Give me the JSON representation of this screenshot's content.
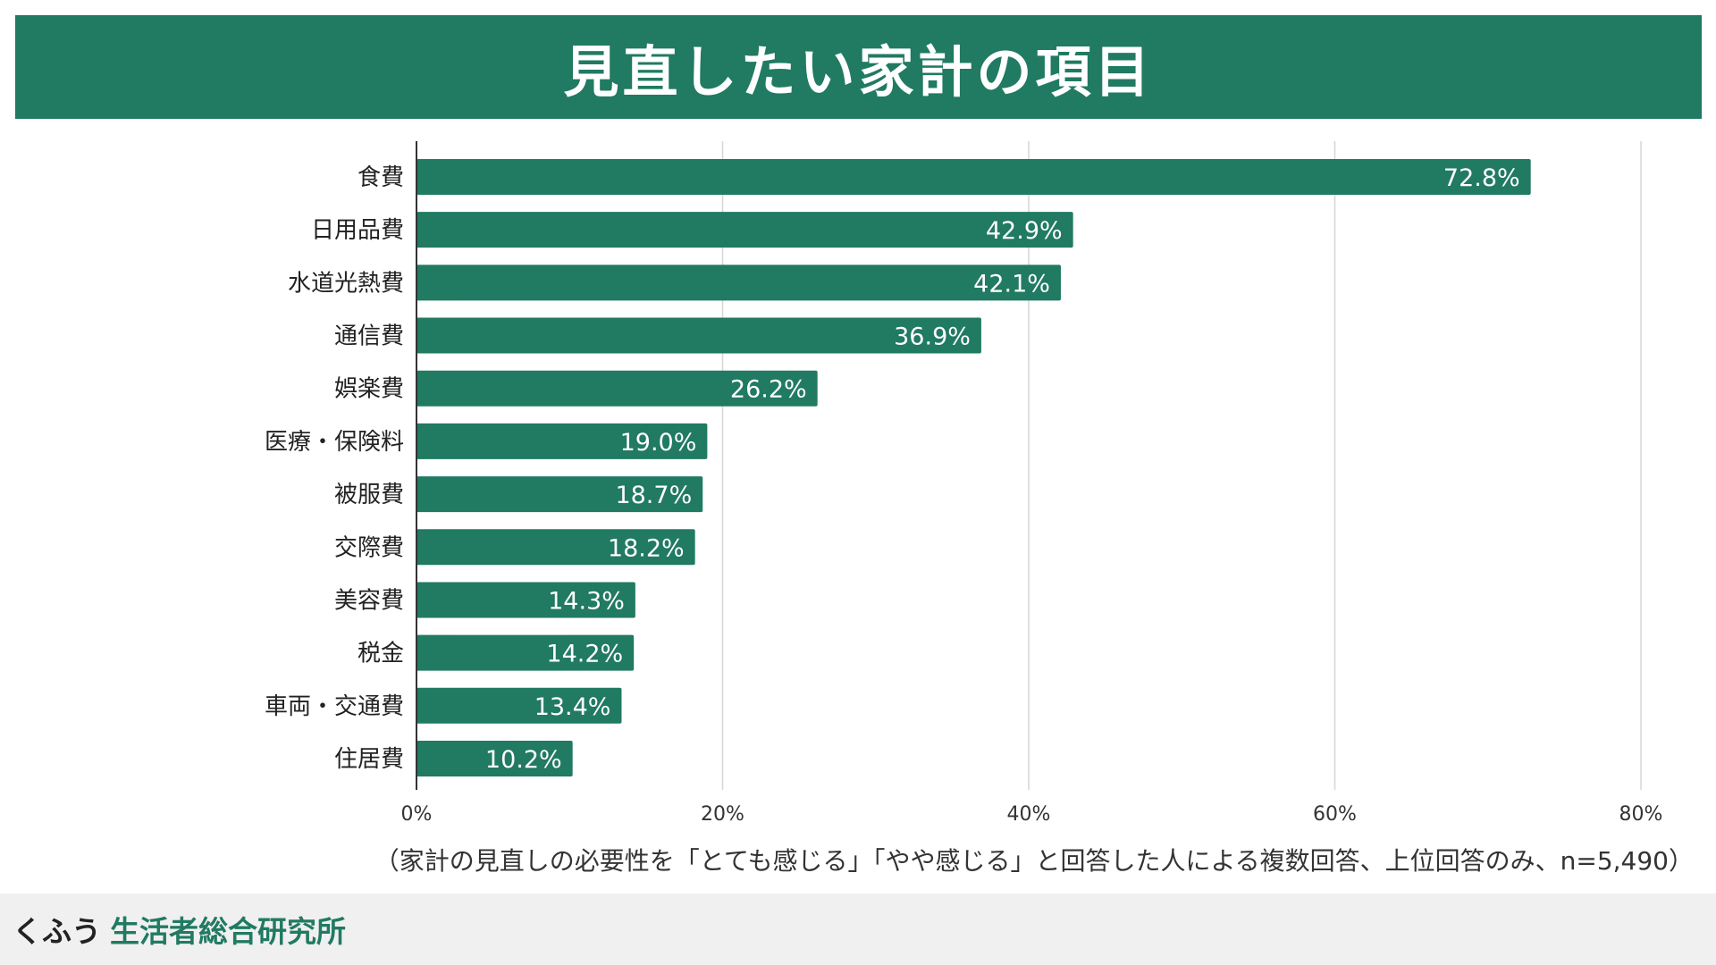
{
  "colors": {
    "accent": "#217a62",
    "bar": "#217a62",
    "grid": "#d6d6d6",
    "axis": "#333333",
    "footer_bg": "#f0f0f0"
  },
  "title": "見直したい家計の項目",
  "note": "（家計の見直しの必要性を「とても感じる」「やや感じる」と回答した人による複数回答、上位回答のみ、n=5,490）",
  "footer": {
    "brand_main": "くふう",
    "brand_sub": "生活者総合研究所"
  },
  "chart_data": {
    "type": "bar",
    "orientation": "horizontal",
    "title": "見直したい家計の項目",
    "xlabel": "",
    "ylabel": "",
    "xlim": [
      0,
      80
    ],
    "ticks": [
      0,
      20,
      40,
      60,
      80
    ],
    "tick_labels": [
      "0%",
      "20%",
      "40%",
      "60%",
      "80%"
    ],
    "grid": true,
    "categories": [
      "食費",
      "日用品費",
      "水道光熱費",
      "通信費",
      "娯楽費",
      "医療・保険料",
      "被服費",
      "交際費",
      "美容費",
      "税金",
      "車両・交通費",
      "住居費"
    ],
    "values": [
      72.8,
      42.9,
      42.1,
      36.9,
      26.2,
      19.0,
      18.7,
      18.2,
      14.3,
      14.2,
      13.4,
      10.2
    ],
    "value_labels": [
      "72.8%",
      "42.9%",
      "42.1%",
      "36.9%",
      "26.2%",
      "19.0%",
      "18.7%",
      "18.2%",
      "14.3%",
      "14.2%",
      "13.4%",
      "10.2%"
    ]
  }
}
